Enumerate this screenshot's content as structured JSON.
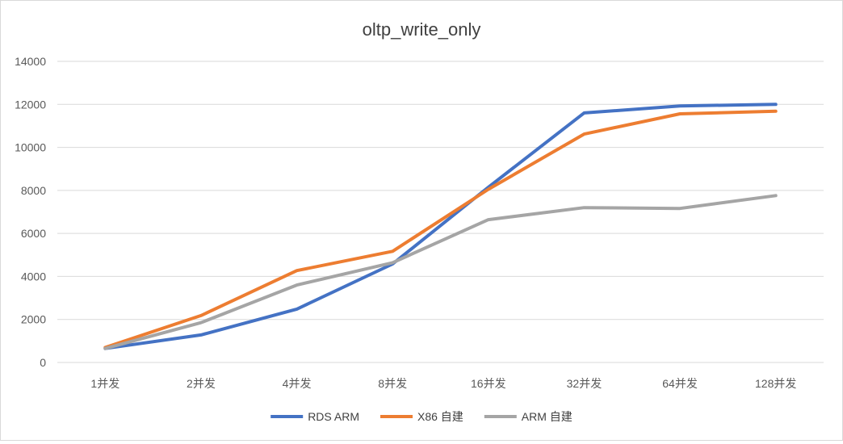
{
  "chart_data": {
    "type": "line",
    "title": "oltp_write_only",
    "xlabel": "",
    "ylabel": "",
    "categories": [
      "1并发",
      "2并发",
      "4并发",
      "8并发",
      "16并发",
      "32并发",
      "64并发",
      "128并发"
    ],
    "y_ticks": [
      "0",
      "2000",
      "4000",
      "6000",
      "8000",
      "10000",
      "12000",
      "14000"
    ],
    "ylim": [
      0,
      14000
    ],
    "grid": true,
    "legend_position": "bottom",
    "series": [
      {
        "name": "RDS ARM",
        "color": "#4472C4",
        "values": [
          650,
          1280,
          2480,
          4580,
          8150,
          11600,
          11930,
          12000
        ]
      },
      {
        "name": "X86 自建",
        "color": "#ED7D31",
        "values": [
          700,
          2180,
          4270,
          5170,
          8050,
          10620,
          11560,
          11680
        ]
      },
      {
        "name": "ARM 自建",
        "color": "#A5A5A5",
        "values": [
          650,
          1850,
          3600,
          4640,
          6640,
          7200,
          7160,
          7760
        ]
      }
    ]
  }
}
